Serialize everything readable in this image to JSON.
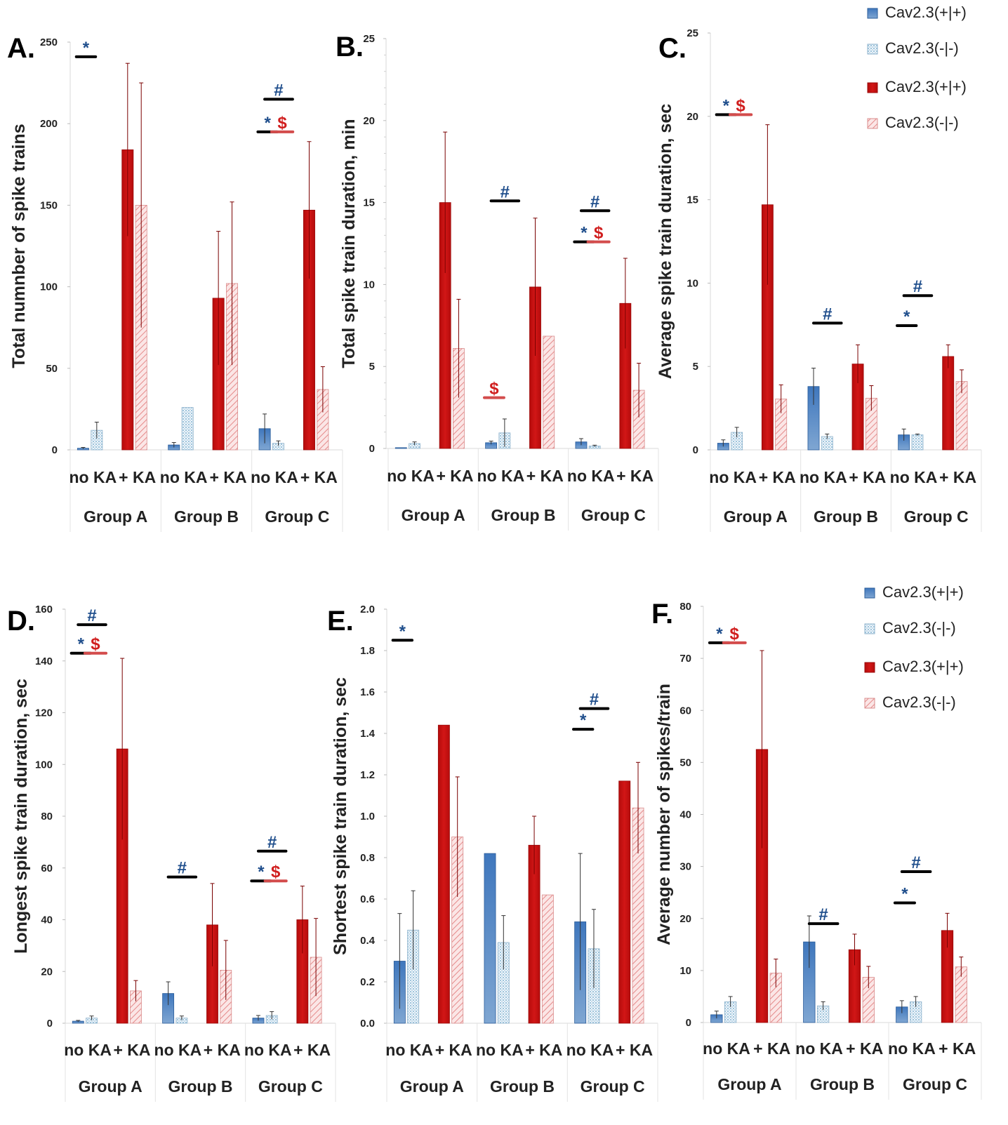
{
  "colors": {
    "blue": "#3a6fb5",
    "blue_light": "#cfe2ef",
    "red": "#c41010",
    "red_light": "#f3caca",
    "sig_blue": "#1f4e8c",
    "sig_red": "#d01e1e",
    "bar_line": "#000000",
    "red_line": "#d34c4c"
  },
  "legends": [
    {
      "items": [
        "Cav2.3(+|+)",
        "Cav2.3(-|-)",
        "Cav2.3(+|+)",
        "Cav2.3(-|-)"
      ]
    },
    {
      "items": [
        "Cav2.3(+|+)",
        "Cav2.3(-|-)",
        "Cav2.3(+|+)",
        "Cav2.3(-|-)"
      ]
    }
  ],
  "chart_data": [
    {
      "type": "bar",
      "letter": "A.",
      "ylabel": "Total numnber of spike trains",
      "ylim": [
        0,
        250
      ],
      "yticks": [
        0,
        50,
        100,
        150,
        200,
        250
      ],
      "minor_ticks": false,
      "groups": [
        "Group A",
        "Group B",
        "Group C"
      ],
      "conditions": [
        "no KA",
        "+ KA"
      ],
      "series": [
        {
          "name": "Cav2.3(+|+)",
          "values": [
            1,
            3,
            13
          ],
          "errors": [
            0.5,
            1.5,
            9
          ]
        },
        {
          "name": "Cav2.3(-|-)",
          "values": [
            12,
            26,
            4
          ],
          "errors": [
            5,
            0,
            1.5
          ]
        },
        {
          "name": "Cav2.3(+|+)",
          "values": [
            184,
            93,
            147
          ],
          "errors": [
            53,
            41,
            42
          ]
        },
        {
          "name": "Cav2.3(-|-)",
          "values": [
            150,
            102,
            37
          ],
          "errors": [
            75,
            50,
            14
          ]
        }
      ],
      "sig": [
        {
          "group": 0,
          "from": 0,
          "to": 1,
          "y": 241,
          "symbol": "*",
          "kind": "blue"
        },
        {
          "group": 2,
          "from": 0,
          "to": 1,
          "y": 195,
          "symbol": "*",
          "kind": "blue"
        },
        {
          "group": 2,
          "from": 1,
          "to": 1.25,
          "y": 195,
          "symbol": "$",
          "kind": "red"
        },
        {
          "group": 2,
          "from": 0.5,
          "to": 1.5,
          "y": 215,
          "symbol": "#",
          "kind": "blue"
        }
      ]
    },
    {
      "type": "bar",
      "letter": "B.",
      "ylabel": "Total spike train duration, min",
      "ylim": [
        0,
        25
      ],
      "yticks": [
        0,
        5,
        10,
        15,
        20,
        25
      ],
      "minor_ticks": true,
      "groups": [
        "Group A",
        "Group B",
        "Group C"
      ],
      "conditions": [
        "no KA",
        "+ KA"
      ],
      "series": [
        {
          "name": "Cav2.3(+|+)",
          "values": [
            0.05,
            0.35,
            0.4
          ],
          "errors": [
            0,
            0.1,
            0.2
          ]
        },
        {
          "name": "Cav2.3(-|-)",
          "values": [
            0.3,
            0.95,
            0.15
          ],
          "errors": [
            0.1,
            0.85,
            0.05
          ]
        },
        {
          "name": "Cav2.3(+|+)",
          "values": [
            15.0,
            9.85,
            8.85
          ],
          "errors": [
            4.3,
            4.2,
            2.75
          ]
        },
        {
          "name": "Cav2.3(-|-)",
          "values": [
            6.1,
            6.85,
            3.55
          ],
          "errors": [
            3.0,
            0,
            1.65
          ]
        }
      ],
      "sig": [
        {
          "group": 1,
          "from": 0,
          "to": 0.45,
          "y": 3.1,
          "symbol": "$",
          "kind": "red"
        },
        {
          "group": 1,
          "from": 0.5,
          "to": 1.5,
          "y": 15.1,
          "symbol": "#",
          "kind": "blue"
        },
        {
          "group": 2,
          "from": 0,
          "to": 1,
          "y": 12.6,
          "symbol": "*",
          "kind": "blue"
        },
        {
          "group": 2,
          "from": 1,
          "to": 1.25,
          "y": 12.6,
          "symbol": "$",
          "kind": "red"
        },
        {
          "group": 2,
          "from": 0.5,
          "to": 1.5,
          "y": 14.5,
          "symbol": "#",
          "kind": "blue"
        }
      ]
    },
    {
      "type": "bar",
      "letter": "C.",
      "ylabel": "Average spike train duration, sec",
      "ylim": [
        0,
        25
      ],
      "yticks": [
        0,
        5,
        10,
        15,
        20,
        25
      ],
      "minor_ticks": false,
      "groups": [
        "Group A",
        "Group B",
        "Group C"
      ],
      "conditions": [
        "no KA",
        "+ KA"
      ],
      "series": [
        {
          "name": "Cav2.3(+|+)",
          "values": [
            0.4,
            3.8,
            0.9
          ],
          "errors": [
            0.2,
            1.1,
            0.35
          ]
        },
        {
          "name": "Cav2.3(-|-)",
          "values": [
            1.05,
            0.8,
            0.9
          ],
          "errors": [
            0.3,
            0.15,
            0.05
          ]
        },
        {
          "name": "Cav2.3(+|+)",
          "values": [
            14.7,
            5.15,
            5.6
          ],
          "errors": [
            4.8,
            1.15,
            0.7
          ]
        },
        {
          "name": "Cav2.3(-|-)",
          "values": [
            3.05,
            3.1,
            4.1
          ],
          "errors": [
            0.85,
            0.75,
            0.7
          ]
        }
      ],
      "sig": [
        {
          "group": 0,
          "from": 0,
          "to": 1,
          "y": 20.1,
          "symbol": "*",
          "kind": "blue"
        },
        {
          "group": 0,
          "from": 1,
          "to": 1.25,
          "y": 20.1,
          "symbol": "$",
          "kind": "red"
        },
        {
          "group": 1,
          "from": 0.5,
          "to": 1.5,
          "y": 7.6,
          "symbol": "#",
          "kind": "blue"
        },
        {
          "group": 2,
          "from": 0,
          "to": 1,
          "y": 7.45,
          "symbol": "*",
          "kind": "blue"
        },
        {
          "group": 2,
          "from": 0.5,
          "to": 1.5,
          "y": 9.25,
          "symbol": "#",
          "kind": "blue"
        }
      ]
    },
    {
      "type": "bar",
      "letter": "D.",
      "ylabel": "Longest spike train duration, sec",
      "ylim": [
        0,
        160
      ],
      "yticks": [
        0,
        20,
        40,
        60,
        80,
        100,
        120,
        140,
        160
      ],
      "minor_ticks": false,
      "groups": [
        "Group A",
        "Group B",
        "Group C"
      ],
      "conditions": [
        "no KA",
        "+ KA"
      ],
      "series": [
        {
          "name": "Cav2.3(+|+)",
          "values": [
            0.8,
            11.5,
            2
          ],
          "errors": [
            0.3,
            4.5,
            1
          ]
        },
        {
          "name": "Cav2.3(-|-)",
          "values": [
            2,
            2,
            3
          ],
          "errors": [
            0.8,
            0.8,
            1.5
          ]
        },
        {
          "name": "Cav2.3(+|+)",
          "values": [
            106,
            38,
            40
          ],
          "errors": [
            35,
            16,
            13
          ]
        },
        {
          "name": "Cav2.3(-|-)",
          "values": [
            12.5,
            20.5,
            25.5
          ],
          "errors": [
            4,
            11.5,
            15
          ]
        }
      ],
      "sig": [
        {
          "group": 0,
          "from": 0,
          "to": 1,
          "y": 143,
          "symbol": "*",
          "kind": "blue"
        },
        {
          "group": 0,
          "from": 1,
          "to": 1.25,
          "y": 143,
          "symbol": "$",
          "kind": "red"
        },
        {
          "group": 0,
          "from": 0.5,
          "to": 1.5,
          "y": 154,
          "symbol": "#",
          "kind": "blue"
        },
        {
          "group": 1,
          "from": 0.5,
          "to": 1.5,
          "y": 56.5,
          "symbol": "#",
          "kind": "blue"
        },
        {
          "group": 2,
          "from": 0,
          "to": 1,
          "y": 55,
          "symbol": "*",
          "kind": "blue"
        },
        {
          "group": 2,
          "from": 1,
          "to": 1.25,
          "y": 55,
          "symbol": "$",
          "kind": "red"
        },
        {
          "group": 2,
          "from": 0.5,
          "to": 1.5,
          "y": 66.5,
          "symbol": "#",
          "kind": "blue"
        }
      ]
    },
    {
      "type": "bar",
      "letter": "E.",
      "ylabel": "Shortest spike train duration, sec",
      "ylim": [
        0,
        2.0
      ],
      "yticks": [
        0.0,
        0.2,
        0.4,
        0.6,
        0.8,
        1.0,
        1.2,
        1.4,
        1.6,
        1.8,
        2.0
      ],
      "decimals": 1,
      "minor_ticks": false,
      "groups": [
        "Group A",
        "Group B",
        "Group C"
      ],
      "conditions": [
        "no KA",
        "+ KA"
      ],
      "series": [
        {
          "name": "Cav2.3(+|+)",
          "values": [
            0.3,
            0.82,
            0.49
          ],
          "errors": [
            0.23,
            0,
            0.33
          ]
        },
        {
          "name": "Cav2.3(-|-)",
          "values": [
            0.45,
            0.39,
            0.36
          ],
          "errors": [
            0.19,
            0.13,
            0.19
          ]
        },
        {
          "name": "Cav2.3(+|+)",
          "values": [
            1.44,
            0.86,
            1.17
          ],
          "errors": [
            0,
            0.14,
            0
          ]
        },
        {
          "name": "Cav2.3(-|-)",
          "values": [
            0.9,
            0.62,
            1.04
          ],
          "errors": [
            0.29,
            0,
            0.22
          ]
        }
      ],
      "sig": [
        {
          "group": 0,
          "from": 0,
          "to": 1,
          "y": 1.85,
          "symbol": "*",
          "kind": "blue"
        },
        {
          "group": 2,
          "from": 0,
          "to": 1,
          "y": 1.42,
          "symbol": "*",
          "kind": "blue"
        },
        {
          "group": 2,
          "from": 0.5,
          "to": 1.5,
          "y": 1.52,
          "symbol": "#",
          "kind": "blue"
        }
      ]
    },
    {
      "type": "bar",
      "letter": "F.",
      "ylabel": "Average number of spikes/train",
      "ylim": [
        0,
        80
      ],
      "yticks": [
        0,
        10,
        20,
        30,
        40,
        50,
        60,
        70,
        80
      ],
      "minor_ticks": false,
      "groups": [
        "Group A",
        "Group B",
        "Group C"
      ],
      "conditions": [
        "no KA",
        "+ KA"
      ],
      "series": [
        {
          "name": "Cav2.3(+|+)",
          "values": [
            1.5,
            15.5,
            3
          ],
          "errors": [
            0.7,
            5,
            1.2
          ]
        },
        {
          "name": "Cav2.3(-|-)",
          "values": [
            4,
            3.2,
            4
          ],
          "errors": [
            1,
            0.8,
            1
          ]
        },
        {
          "name": "Cav2.3(+|+)",
          "values": [
            52.5,
            14,
            17.7
          ],
          "errors": [
            19,
            3,
            3.3
          ]
        },
        {
          "name": "Cav2.3(-|-)",
          "values": [
            9.5,
            8.7,
            10.7
          ],
          "errors": [
            2.7,
            2.1,
            1.9
          ]
        }
      ],
      "sig": [
        {
          "group": 0,
          "from": 0,
          "to": 1,
          "y": 73,
          "symbol": "*",
          "kind": "blue"
        },
        {
          "group": 0,
          "from": 1,
          "to": 1.25,
          "y": 73,
          "symbol": "$",
          "kind": "red"
        },
        {
          "group": 1,
          "from": 0.5,
          "to": 1.5,
          "y": 19,
          "symbol": "#",
          "kind": "blue"
        },
        {
          "group": 2,
          "from": 0,
          "to": 1,
          "y": 23,
          "symbol": "*",
          "kind": "blue"
        },
        {
          "group": 2,
          "from": 0.5,
          "to": 1.5,
          "y": 29,
          "symbol": "#",
          "kind": "blue"
        }
      ]
    }
  ]
}
